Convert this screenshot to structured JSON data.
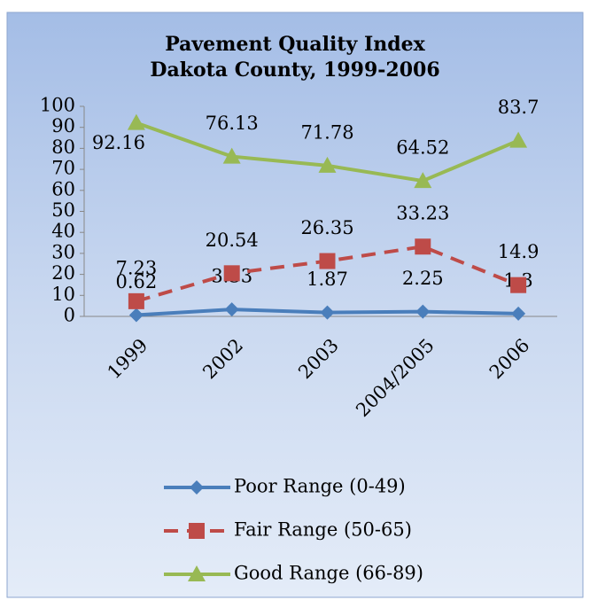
{
  "chart_data": {
    "type": "line",
    "title": [
      "Pavement Quality Index",
      "Dakota County, 1999-2006"
    ],
    "categories": [
      "1999",
      "2002",
      "2003",
      "2004/2005",
      "2006"
    ],
    "series": [
      {
        "name": "Poor Range (0-49)",
        "color": "#4a7ebb",
        "marker": "diamond",
        "dash": false,
        "values": [
          0.62,
          3.33,
          1.87,
          2.25,
          1.3
        ]
      },
      {
        "name": "Fair Range (50-65)",
        "color": "#be4b48",
        "marker": "square",
        "dash": true,
        "values": [
          7.23,
          20.54,
          26.35,
          33.23,
          14.9
        ]
      },
      {
        "name": "Good Range (66-89)",
        "color": "#98b954",
        "marker": "triangle",
        "dash": false,
        "values": [
          92.16,
          76.13,
          71.78,
          64.52,
          83.7
        ]
      }
    ],
    "ylim": [
      0,
      100
    ],
    "yticks": [
      0,
      10,
      20,
      30,
      40,
      50,
      60,
      70,
      80,
      90,
      100
    ]
  }
}
